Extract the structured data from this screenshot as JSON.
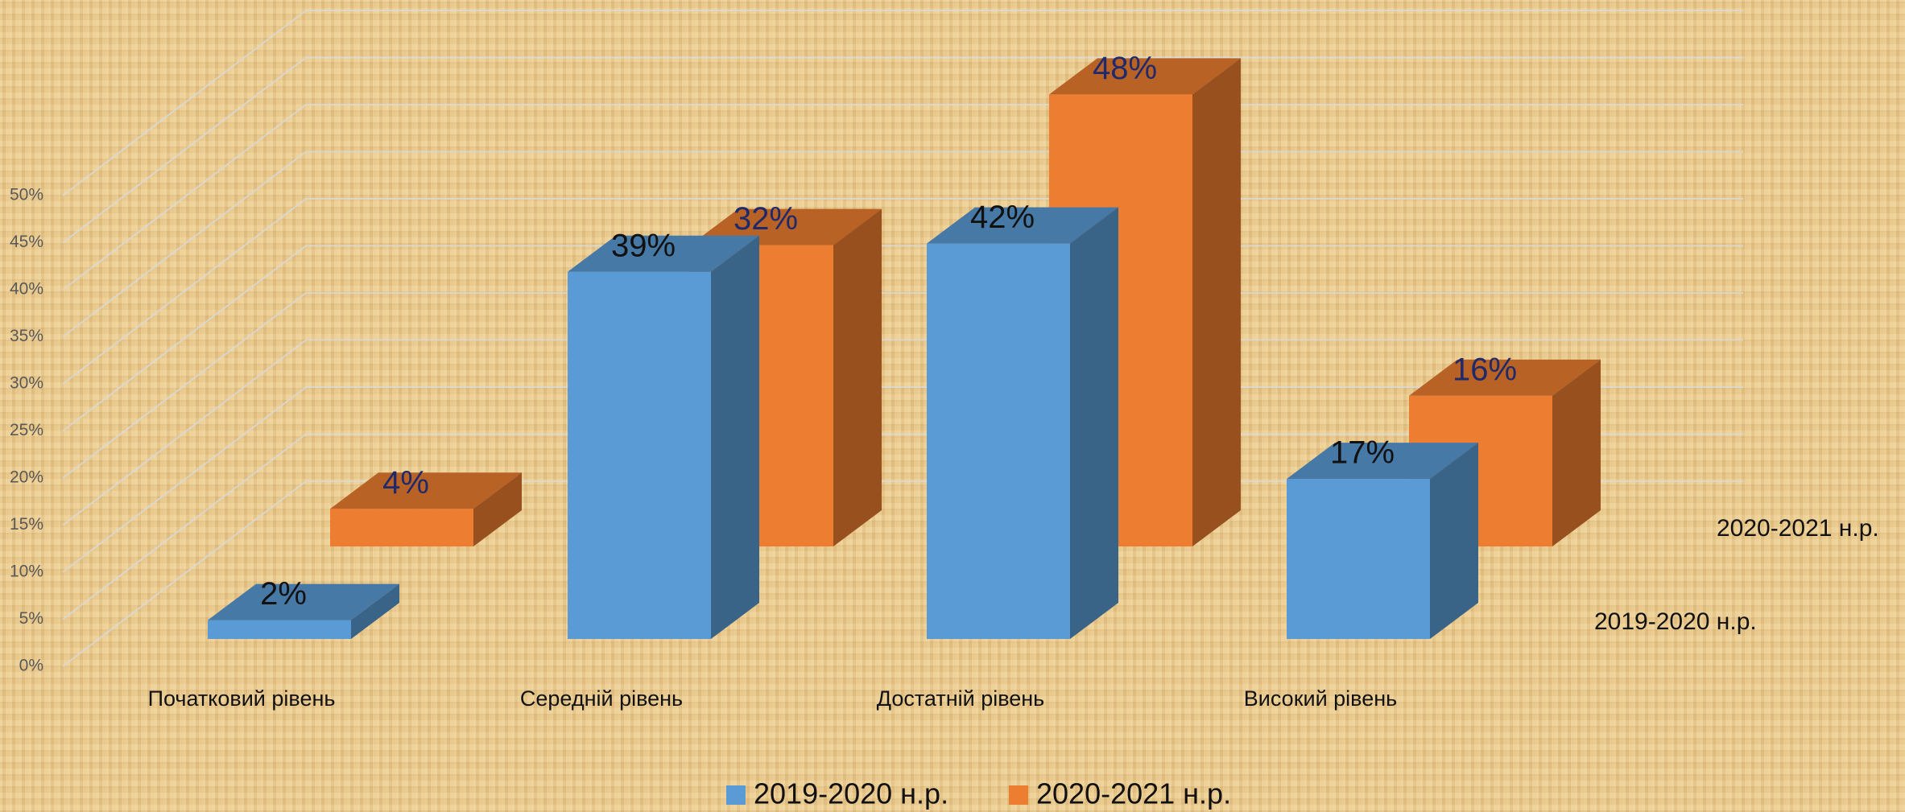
{
  "chart_data": {
    "type": "bar3d",
    "categories": [
      "Початковий рівень",
      "Середній рівень",
      "Достатній рівень",
      "Високий рівень"
    ],
    "series": [
      {
        "name": "2019-2020 н.р.",
        "color": "#5b9bd5",
        "values": [
          2,
          39,
          42,
          17
        ],
        "value_labels": [
          "2%",
          "39%",
          "42%",
          "17%"
        ]
      },
      {
        "name": "2020-2021 н.р.",
        "color": "#ed7d31",
        "values": [
          4,
          32,
          48,
          16
        ],
        "value_labels": [
          "4%",
          "32%",
          "48%",
          "16%"
        ]
      }
    ],
    "ylim": [
      0,
      50
    ],
    "yticks": [
      {
        "value": 0,
        "label": "0%"
      },
      {
        "value": 5,
        "label": "5%"
      },
      {
        "value": 10,
        "label": "10%"
      },
      {
        "value": 15,
        "label": "15%"
      },
      {
        "value": 20,
        "label": "20%"
      },
      {
        "value": 25,
        "label": "25%"
      },
      {
        "value": 30,
        "label": "30%"
      },
      {
        "value": 35,
        "label": "35%"
      },
      {
        "value": 40,
        "label": "40%"
      },
      {
        "value": 45,
        "label": "45%"
      },
      {
        "value": 50,
        "label": "50%"
      }
    ],
    "grid": true,
    "legend": "bottom"
  }
}
